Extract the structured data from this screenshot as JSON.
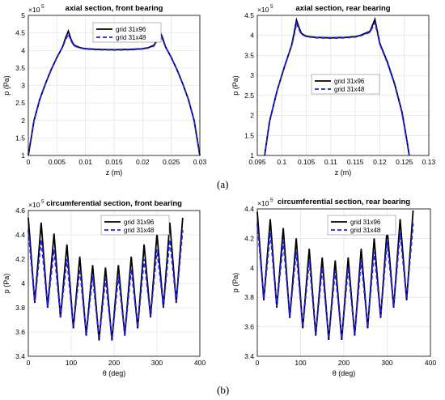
{
  "labels": {
    "a": "(a)",
    "b": "(b)"
  },
  "colors": {
    "series_1": "#000000",
    "series_2": "#1f1fff"
  },
  "chart_data": [
    {
      "type": "line",
      "title": "axial section, front bearing",
      "xlabel": "z (m)",
      "ylabel": "p (Pa)",
      "exponent": "×10",
      "exponent_power": "5",
      "xlim": [
        0,
        0.03
      ],
      "ylim": [
        1,
        5
      ],
      "xticks": [
        "0",
        "0.005",
        "0.01",
        "0.015",
        "0.02",
        "0.025",
        "0.03"
      ],
      "yticks": [
        "1",
        "1.5",
        "2",
        "2.5",
        "3",
        "3.5",
        "4",
        "4.5",
        "5"
      ],
      "grid": true,
      "legend": "top-center",
      "series": [
        {
          "name": "grid 31x96",
          "style": "solid",
          "x": [
            0,
            0.001,
            0.002,
            0.003,
            0.004,
            0.005,
            0.006,
            0.0065,
            0.007,
            0.0075,
            0.008,
            0.009,
            0.01,
            0.012,
            0.015,
            0.018,
            0.02,
            0.021,
            0.022,
            0.0225,
            0.023,
            0.0235,
            0.024,
            0.025,
            0.026,
            0.027,
            0.028,
            0.029,
            0.03
          ],
          "y": [
            1.0,
            2.0,
            2.6,
            3.05,
            3.45,
            3.8,
            4.1,
            4.35,
            4.55,
            4.3,
            4.15,
            4.08,
            4.05,
            4.03,
            4.02,
            4.03,
            4.05,
            4.08,
            4.15,
            4.3,
            4.55,
            4.35,
            4.1,
            3.8,
            3.45,
            3.05,
            2.6,
            2.0,
            1.0
          ]
        },
        {
          "name": "grid 31x48",
          "style": "dashed",
          "x": [
            0,
            0.001,
            0.002,
            0.003,
            0.004,
            0.005,
            0.006,
            0.0065,
            0.007,
            0.0075,
            0.008,
            0.009,
            0.01,
            0.012,
            0.015,
            0.018,
            0.02,
            0.021,
            0.022,
            0.0225,
            0.023,
            0.0235,
            0.024,
            0.025,
            0.026,
            0.027,
            0.028,
            0.029,
            0.03
          ],
          "y": [
            1.0,
            2.0,
            2.6,
            3.05,
            3.45,
            3.8,
            4.1,
            4.3,
            4.47,
            4.27,
            4.13,
            4.07,
            4.04,
            4.02,
            4.01,
            4.02,
            4.04,
            4.07,
            4.13,
            4.27,
            4.47,
            4.3,
            4.1,
            3.8,
            3.45,
            3.05,
            2.6,
            2.0,
            1.0
          ]
        }
      ]
    },
    {
      "type": "line",
      "title": "axial section, rear bearing",
      "xlabel": "z (m)",
      "ylabel": "p (Pa)",
      "exponent": "×10",
      "exponent_power": "5",
      "xlim": [
        0.095,
        0.13
      ],
      "ylim": [
        1,
        4.5
      ],
      "xticks": [
        "0.095",
        "0.1",
        "0.105",
        "0.11",
        "0.115",
        "0.12",
        "0.125",
        "0.13"
      ],
      "yticks": [
        "1",
        "1.5",
        "2",
        "2.5",
        "3",
        "3.5",
        "4",
        "4.5"
      ],
      "grid": true,
      "legend": "center",
      "series": [
        {
          "name": "grid 31x96",
          "style": "solid",
          "x": [
            0.0965,
            0.0975,
            0.099,
            0.1005,
            0.102,
            0.1025,
            0.103,
            0.1035,
            0.104,
            0.105,
            0.107,
            0.11,
            0.113,
            0.115,
            0.116,
            0.117,
            0.118,
            0.1185,
            0.119,
            0.1195,
            0.12,
            0.1215,
            0.123,
            0.1245,
            0.1255,
            0.126
          ],
          "y": [
            1.0,
            1.85,
            2.6,
            3.2,
            3.75,
            4.05,
            4.38,
            4.2,
            4.05,
            3.98,
            3.95,
            3.94,
            3.95,
            3.97,
            4.0,
            4.05,
            4.1,
            4.25,
            4.4,
            4.1,
            3.8,
            3.35,
            2.8,
            2.1,
            1.4,
            1.0
          ]
        },
        {
          "name": "grid 31x48",
          "style": "dashed",
          "x": [
            0.0965,
            0.0975,
            0.099,
            0.1005,
            0.102,
            0.1025,
            0.103,
            0.1035,
            0.104,
            0.105,
            0.107,
            0.11,
            0.113,
            0.115,
            0.116,
            0.117,
            0.118,
            0.1185,
            0.119,
            0.1195,
            0.12,
            0.1215,
            0.123,
            0.1245,
            0.1255,
            0.126
          ],
          "y": [
            1.0,
            1.85,
            2.6,
            3.2,
            3.75,
            4.0,
            4.3,
            4.15,
            4.03,
            3.97,
            3.94,
            3.93,
            3.94,
            3.96,
            3.99,
            4.03,
            4.08,
            4.2,
            4.32,
            4.07,
            3.78,
            3.33,
            2.78,
            2.08,
            1.38,
            1.0
          ]
        }
      ]
    },
    {
      "type": "line",
      "title": "circumferential section, front bearing",
      "xlabel": "θ (deg)",
      "ylabel": "p (Pa)",
      "exponent": "×10",
      "exponent_power": "5",
      "xlim": [
        0,
        400
      ],
      "ylim": [
        3.4,
        4.6
      ],
      "xticks": [
        "0",
        "100",
        "200",
        "300",
        "400"
      ],
      "yticks": [
        "3.4",
        "3.6",
        "3.8",
        "4",
        "4.2",
        "4.4",
        "4.6"
      ],
      "grid": true,
      "legend": "top-center",
      "series": [
        {
          "name": "grid 31x96",
          "style": "solid",
          "peaks_x": [
            0,
            30,
            60,
            90,
            120,
            150,
            180,
            210,
            240,
            270,
            300,
            330,
            360
          ],
          "peaks_y": [
            4.54,
            4.5,
            4.41,
            4.32,
            4.22,
            4.15,
            4.13,
            4.15,
            4.22,
            4.32,
            4.41,
            4.5,
            4.54
          ],
          "troughs_x": [
            15,
            45,
            75,
            105,
            135,
            165,
            195,
            225,
            255,
            285,
            315,
            345
          ],
          "troughs_y": [
            3.84,
            3.8,
            3.72,
            3.63,
            3.57,
            3.53,
            3.53,
            3.57,
            3.63,
            3.72,
            3.8,
            3.84
          ]
        },
        {
          "name": "grid 31x48",
          "style": "dashed",
          "peaks_x": [
            0,
            30,
            60,
            90,
            120,
            150,
            180,
            210,
            240,
            270,
            300,
            330,
            360
          ],
          "peaks_y": [
            4.44,
            4.36,
            4.28,
            4.2,
            4.12,
            4.06,
            4.04,
            4.06,
            4.12,
            4.2,
            4.28,
            4.36,
            4.44
          ],
          "troughs_x": [
            15,
            45,
            75,
            105,
            135,
            165,
            195,
            225,
            255,
            285,
            315,
            345
          ],
          "troughs_y": [
            3.85,
            3.81,
            3.73,
            3.64,
            3.58,
            3.54,
            3.54,
            3.58,
            3.64,
            3.73,
            3.81,
            3.85
          ]
        }
      ]
    },
    {
      "type": "line",
      "title": "circumferential section, rear bearing",
      "xlabel": "θ (deg)",
      "ylabel": "p (Pa)",
      "exponent": "×10",
      "exponent_power": "5",
      "xlim": [
        0,
        400
      ],
      "ylim": [
        3.4,
        4.4
      ],
      "xticks": [
        "0",
        "100",
        "200",
        "300",
        "400"
      ],
      "yticks": [
        "3.4",
        "3.6",
        "3.8",
        "4",
        "4.2",
        "4.4"
      ],
      "grid": true,
      "legend": "top-center",
      "series": [
        {
          "name": "grid 31x96",
          "style": "solid",
          "peaks_x": [
            0,
            30,
            60,
            90,
            120,
            150,
            180,
            210,
            240,
            270,
            300,
            330,
            360
          ],
          "peaks_y": [
            4.38,
            4.33,
            4.27,
            4.2,
            4.13,
            4.07,
            4.05,
            4.07,
            4.13,
            4.2,
            4.27,
            4.33,
            4.39
          ],
          "troughs_x": [
            15,
            45,
            75,
            105,
            135,
            165,
            195,
            225,
            255,
            285,
            315,
            345
          ],
          "troughs_y": [
            3.78,
            3.73,
            3.66,
            3.59,
            3.54,
            3.51,
            3.51,
            3.54,
            3.59,
            3.66,
            3.73,
            3.78
          ]
        },
        {
          "name": "grid 31x48",
          "style": "dashed",
          "peaks_x": [
            0,
            30,
            60,
            90,
            120,
            150,
            180,
            210,
            240,
            270,
            300,
            330,
            360
          ],
          "peaks_y": [
            4.3,
            4.24,
            4.18,
            4.11,
            4.05,
            4.0,
            3.98,
            4.0,
            4.05,
            4.11,
            4.18,
            4.24,
            4.3
          ],
          "troughs_x": [
            15,
            45,
            75,
            105,
            135,
            165,
            195,
            225,
            255,
            285,
            315,
            345
          ],
          "troughs_y": [
            3.79,
            3.74,
            3.67,
            3.6,
            3.55,
            3.52,
            3.52,
            3.55,
            3.6,
            3.67,
            3.74,
            3.79
          ]
        }
      ]
    }
  ]
}
